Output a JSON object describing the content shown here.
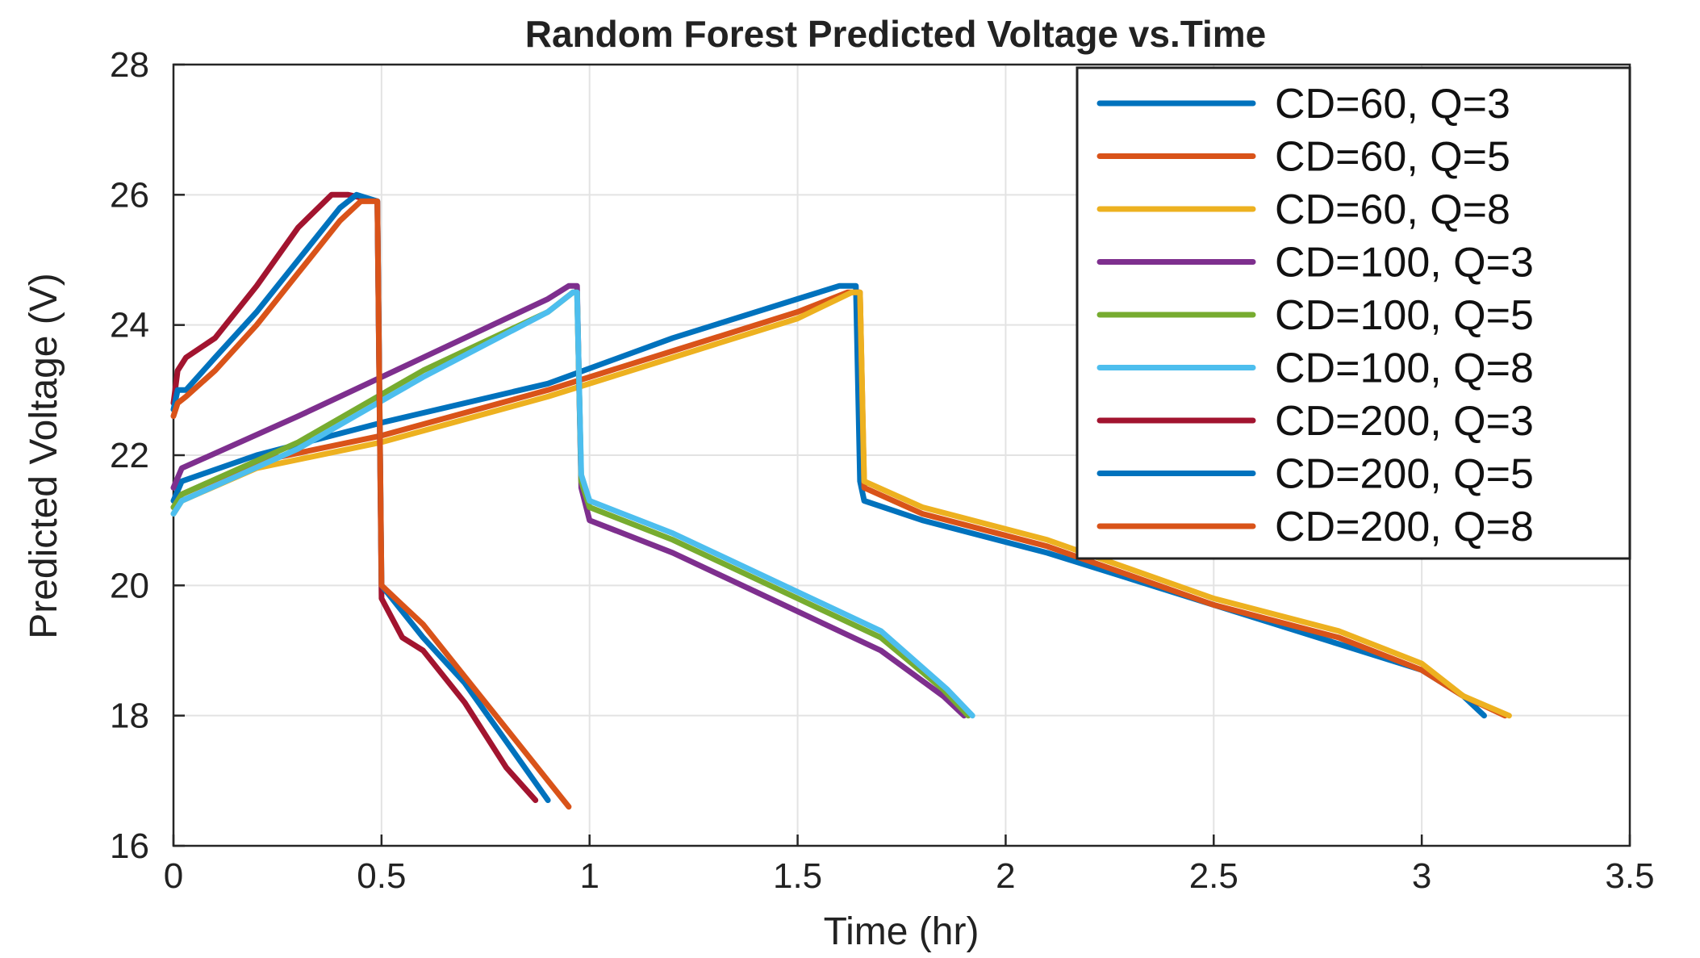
{
  "chart_data": {
    "type": "line",
    "title": "Random Forest Predicted Voltage vs.Time",
    "xlabel": "Time (hr)",
    "ylabel": "Predicted Voltage (V)",
    "xlim": [
      0,
      3.5
    ],
    "ylim": [
      16,
      28
    ],
    "xticks": [
      0,
      0.5,
      1,
      1.5,
      2,
      2.5,
      3,
      3.5
    ],
    "xtick_labels": [
      "0",
      "0.5",
      "1",
      "1.5",
      "2",
      "2.5",
      "3",
      "3.5"
    ],
    "yticks": [
      16,
      18,
      20,
      22,
      24,
      26,
      28
    ],
    "ytick_labels": [
      "16",
      "18",
      "20",
      "22",
      "24",
      "26",
      "28"
    ],
    "grid": true,
    "legend_position": "top-right",
    "series": [
      {
        "name": "CD=60, Q=3",
        "color": "#0072BD",
        "x": [
          0,
          0.02,
          0.2,
          0.5,
          0.9,
          1.2,
          1.5,
          1.6,
          1.64,
          1.65,
          1.66,
          1.8,
          2.1,
          2.5,
          2.8,
          3.0,
          3.1,
          3.15
        ],
        "y": [
          21.3,
          21.6,
          22.0,
          22.5,
          23.1,
          23.8,
          24.4,
          24.6,
          24.6,
          21.6,
          21.3,
          21.0,
          20.5,
          19.7,
          19.1,
          18.7,
          18.3,
          18.0
        ]
      },
      {
        "name": "CD=60, Q=5",
        "color": "#D95319",
        "x": [
          0,
          0.02,
          0.2,
          0.5,
          0.9,
          1.2,
          1.5,
          1.62,
          1.65,
          1.66,
          1.8,
          2.1,
          2.5,
          2.8,
          3.0,
          3.1,
          3.2
        ],
        "y": [
          21.2,
          21.4,
          21.9,
          22.3,
          23.0,
          23.6,
          24.2,
          24.5,
          24.5,
          21.5,
          21.1,
          20.6,
          19.7,
          19.2,
          18.7,
          18.3,
          18.0
        ]
      },
      {
        "name": "CD=60, Q=8",
        "color": "#EDB120",
        "x": [
          0,
          0.02,
          0.2,
          0.5,
          0.9,
          1.2,
          1.5,
          1.63,
          1.65,
          1.66,
          1.8,
          2.1,
          2.5,
          2.8,
          3.0,
          3.1,
          3.21
        ],
        "y": [
          21.1,
          21.3,
          21.8,
          22.2,
          22.9,
          23.5,
          24.1,
          24.5,
          24.5,
          21.6,
          21.2,
          20.7,
          19.8,
          19.3,
          18.8,
          18.3,
          18.0
        ]
      },
      {
        "name": "CD=100, Q=3",
        "color": "#7E2F8E",
        "x": [
          0,
          0.02,
          0.3,
          0.6,
          0.9,
          0.95,
          0.97,
          0.98,
          1.0,
          1.2,
          1.5,
          1.7,
          1.85,
          1.9
        ],
        "y": [
          21.5,
          21.8,
          22.6,
          23.5,
          24.4,
          24.6,
          24.6,
          21.5,
          21.0,
          20.5,
          19.6,
          19.0,
          18.3,
          18.0
        ]
      },
      {
        "name": "CD=100, Q=5",
        "color": "#77AC30",
        "x": [
          0,
          0.02,
          0.3,
          0.6,
          0.9,
          0.96,
          0.97,
          0.98,
          1.0,
          1.2,
          1.5,
          1.7,
          1.85,
          1.91
        ],
        "y": [
          21.2,
          21.4,
          22.2,
          23.3,
          24.2,
          24.5,
          24.5,
          21.6,
          21.2,
          20.7,
          19.8,
          19.2,
          18.4,
          18.0
        ]
      },
      {
        "name": "CD=100, Q=8",
        "color": "#4DBEEE",
        "x": [
          0,
          0.02,
          0.3,
          0.6,
          0.9,
          0.96,
          0.97,
          0.98,
          1.0,
          1.2,
          1.5,
          1.7,
          1.86,
          1.92
        ],
        "y": [
          21.1,
          21.3,
          22.1,
          23.2,
          24.2,
          24.5,
          24.5,
          21.7,
          21.3,
          20.8,
          19.9,
          19.3,
          18.4,
          18.0
        ]
      },
      {
        "name": "CD=200, Q=3",
        "color": "#A2142F",
        "x": [
          0,
          0.01,
          0.03,
          0.1,
          0.2,
          0.3,
          0.38,
          0.42,
          0.49,
          0.5,
          0.55,
          0.6,
          0.7,
          0.8,
          0.87
        ],
        "y": [
          22.8,
          23.3,
          23.5,
          23.8,
          24.6,
          25.5,
          26.0,
          26.0,
          25.9,
          19.8,
          19.2,
          19.0,
          18.2,
          17.2,
          16.7
        ]
      },
      {
        "name": "CD=200, Q=5",
        "color": "#0072BD",
        "x": [
          0,
          0.01,
          0.03,
          0.1,
          0.2,
          0.3,
          0.4,
          0.44,
          0.49,
          0.5,
          0.55,
          0.6,
          0.7,
          0.8,
          0.9
        ],
        "y": [
          22.7,
          23.0,
          23.0,
          23.5,
          24.2,
          25.0,
          25.8,
          26.0,
          25.9,
          20.0,
          19.6,
          19.2,
          18.5,
          17.6,
          16.7
        ]
      },
      {
        "name": "CD=200, Q=8",
        "color": "#D95319",
        "x": [
          0,
          0.01,
          0.03,
          0.1,
          0.2,
          0.3,
          0.4,
          0.45,
          0.49,
          0.5,
          0.55,
          0.6,
          0.7,
          0.8,
          0.9,
          0.95
        ],
        "y": [
          22.6,
          22.8,
          22.9,
          23.3,
          24.0,
          24.8,
          25.6,
          25.9,
          25.9,
          20.0,
          19.7,
          19.4,
          18.6,
          17.8,
          17.0,
          16.6
        ]
      }
    ]
  }
}
